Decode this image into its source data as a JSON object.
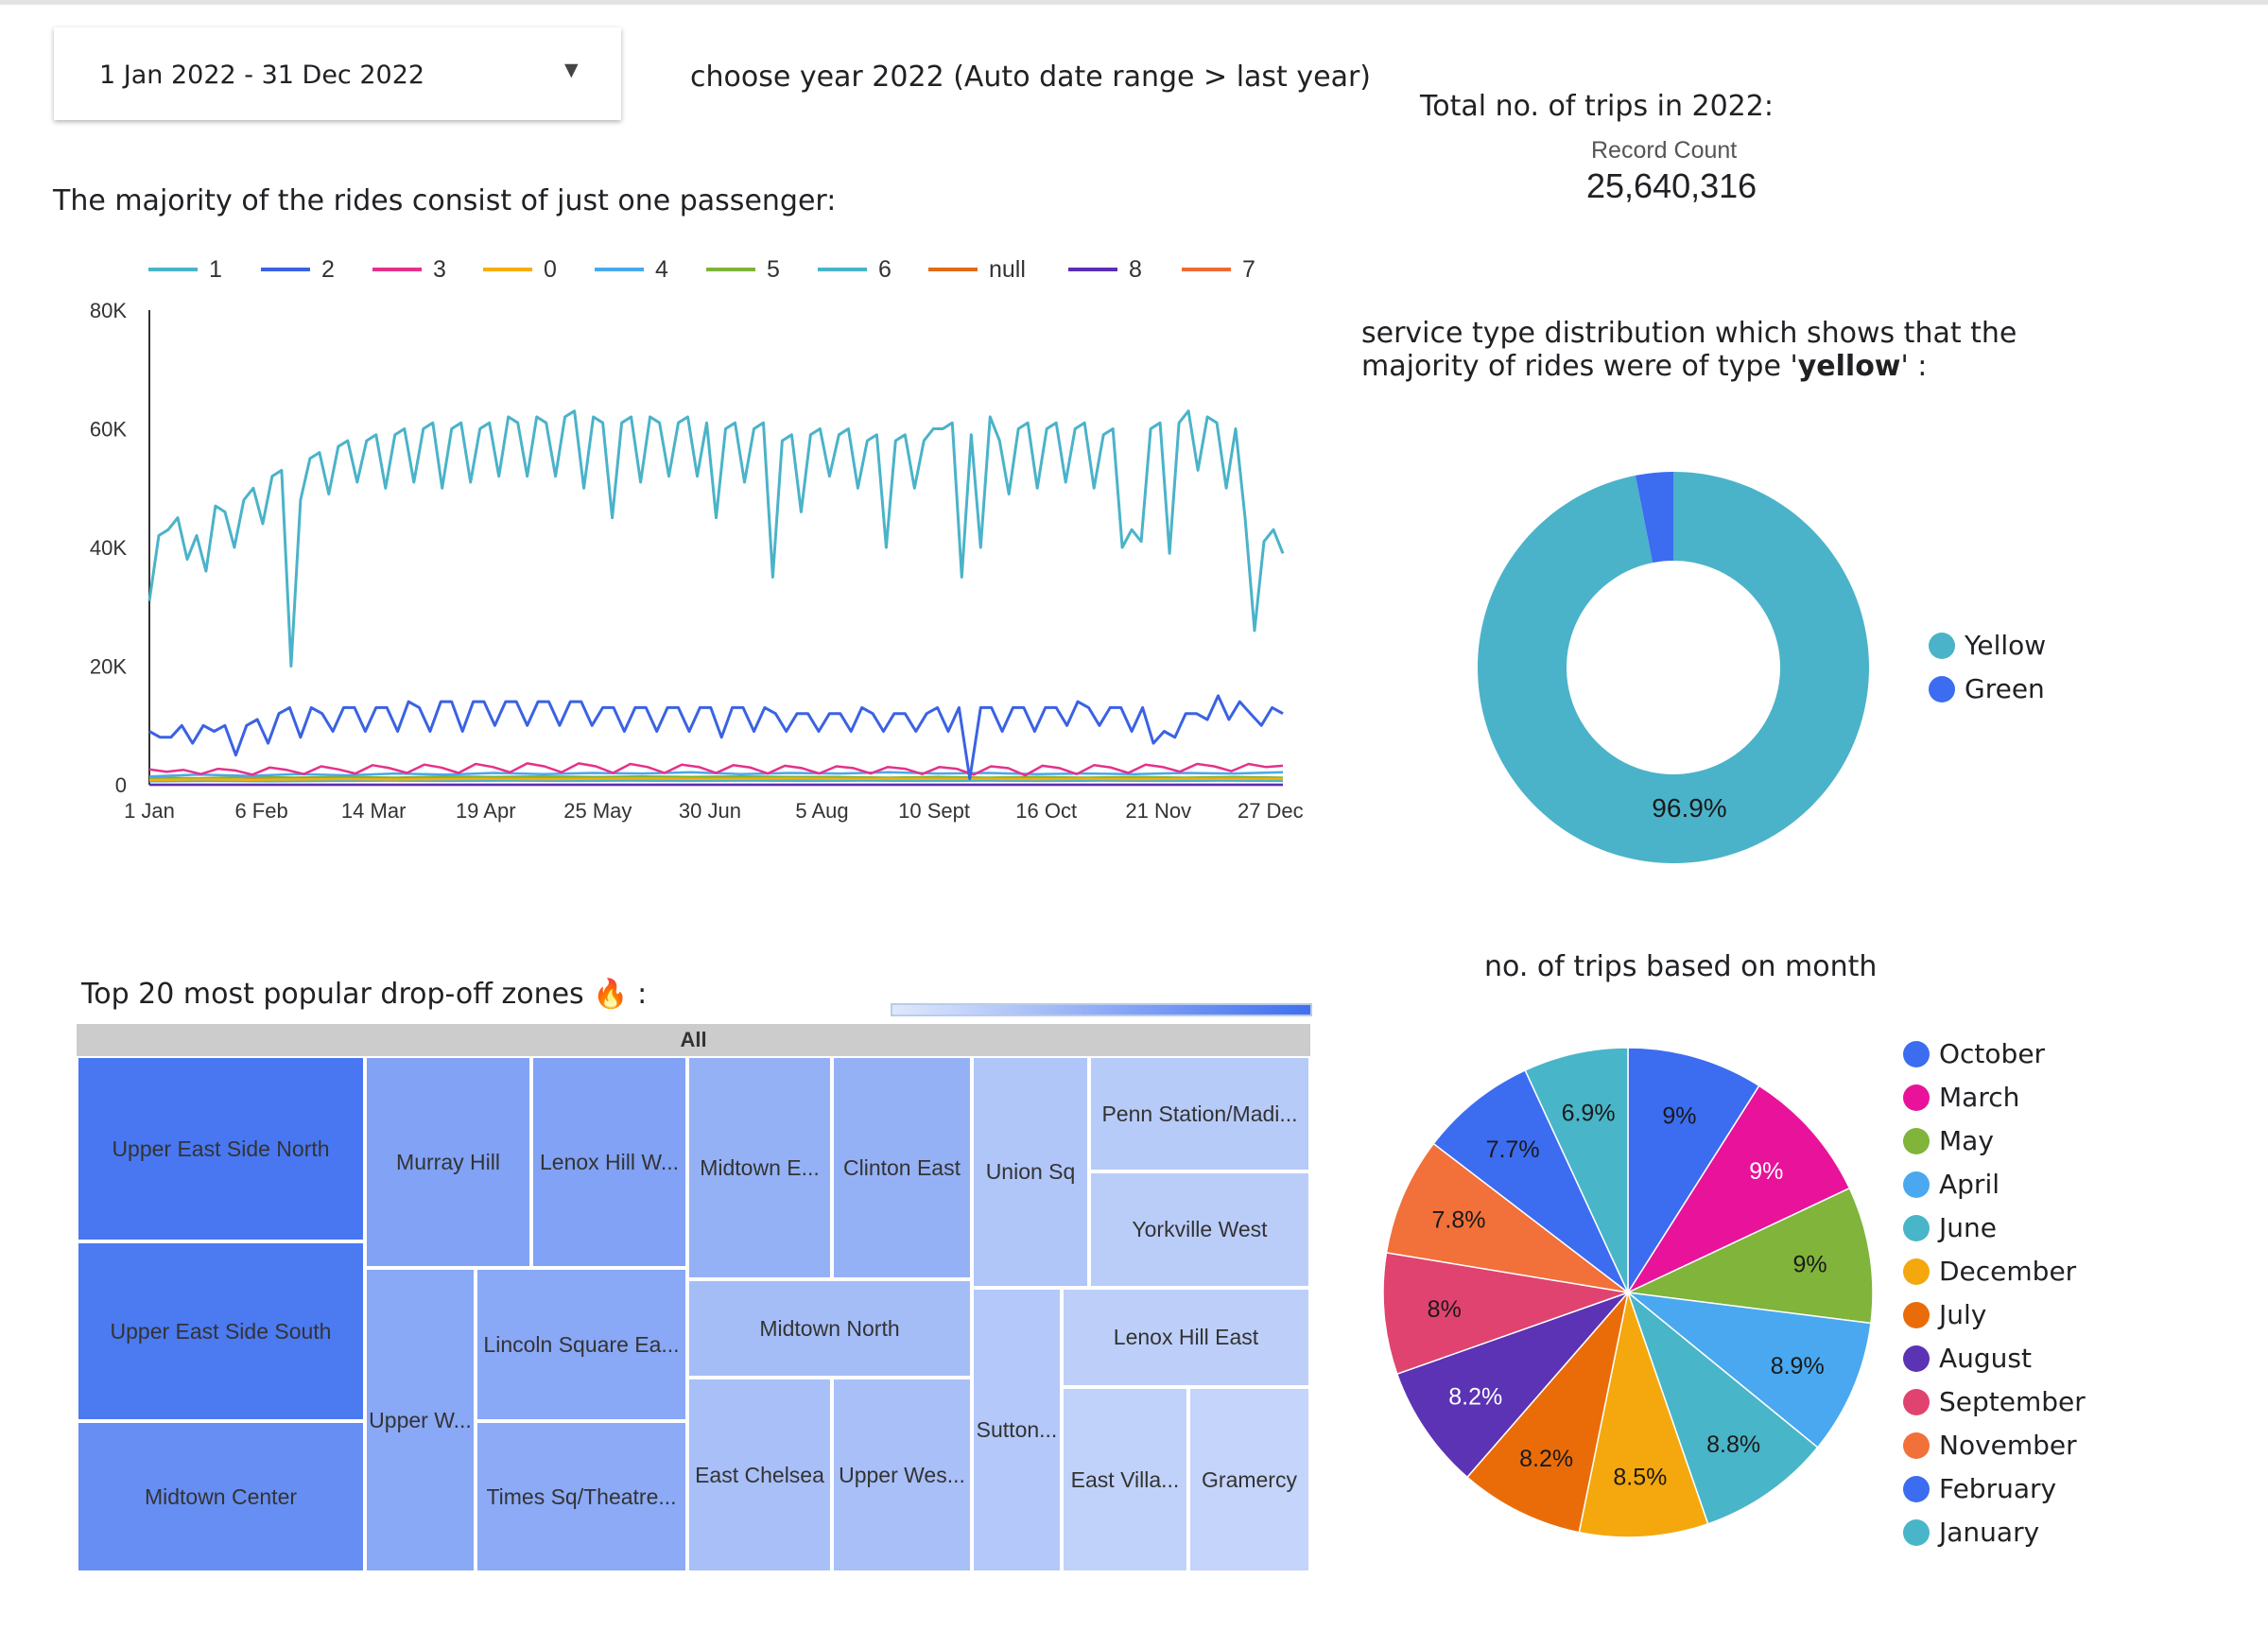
{
  "date_filter": {
    "label": "1 Jan 2022 - 31 Dec 2022",
    "caret": "▼",
    "note": "choose year 2022 (Auto date range > last year)"
  },
  "scorecard": {
    "heading": "Total no. of trips in 2022:",
    "label": "Record Count",
    "value": "25,640,316"
  },
  "line_title": "The majority of the rides consist of just one passenger:",
  "donut_title_1": "service type distribution which shows that the",
  "donut_title_2_pre": "majority of rides were of type '",
  "donut_title_2_bold": "yellow",
  "donut_title_2_post": "' :",
  "treemap_title": "Top 20 most popular drop-off zones 🔥 :",
  "pie_title": "no. of trips based on month",
  "chart_data": [
    {
      "type": "line",
      "x_start": "2022-01-01",
      "xticks": [
        {
          "label": "1 Jan",
          "date": "2022-01-01"
        },
        {
          "label": "6 Feb",
          "date": "2022-02-06"
        },
        {
          "label": "14 Mar",
          "date": "2022-03-14"
        },
        {
          "label": "19 Apr",
          "date": "2022-04-19"
        },
        {
          "label": "25 May",
          "date": "2022-05-25"
        },
        {
          "label": "30 Jun",
          "date": "2022-06-30"
        },
        {
          "label": "5 Aug",
          "date": "2022-08-05"
        },
        {
          "label": "10 Sept",
          "date": "2022-09-10"
        },
        {
          "label": "16 Oct",
          "date": "2022-10-16"
        },
        {
          "label": "21 Nov",
          "date": "2022-11-21"
        },
        {
          "label": "27 Dec",
          "date": "2022-12-27"
        }
      ],
      "yticks": [
        {
          "label": "0",
          "value": 0
        },
        {
          "label": "20K",
          "value": 20000
        },
        {
          "label": "40K",
          "value": 40000
        },
        {
          "label": "60K",
          "value": 60000
        },
        {
          "label": "80K",
          "value": 80000
        }
      ],
      "ylim": [
        0,
        80000
      ],
      "legend": [
        "1",
        "2",
        "3",
        "0",
        "4",
        "5",
        "6",
        "null",
        "8",
        "7"
      ],
      "series": [
        {
          "name": "1",
          "color": "#4ab3c9",
          "values": [
            31000,
            42000,
            43000,
            45000,
            38000,
            42000,
            36000,
            47000,
            46000,
            40000,
            48000,
            50000,
            44000,
            52000,
            53000,
            20000,
            48000,
            55000,
            56000,
            49000,
            57000,
            58000,
            51000,
            58000,
            59000,
            50000,
            59000,
            60000,
            51000,
            60000,
            61000,
            50000,
            60000,
            61000,
            51000,
            60000,
            61000,
            52000,
            62000,
            61000,
            52000,
            62000,
            61000,
            52000,
            62000,
            63000,
            50000,
            62000,
            61000,
            45000,
            61000,
            62000,
            51000,
            62000,
            61000,
            52000,
            61000,
            62000,
            52000,
            61000,
            45000,
            60000,
            61000,
            51000,
            60000,
            61000,
            35000,
            58000,
            59000,
            46000,
            59000,
            60000,
            52000,
            59000,
            60000,
            50000,
            58000,
            59000,
            40000,
            58000,
            59000,
            50000,
            58000,
            60000,
            60000,
            61000,
            35000,
            59000,
            40000,
            62000,
            58000,
            49000,
            60000,
            61000,
            50000,
            60000,
            61000,
            51000,
            60000,
            61000,
            50000,
            59000,
            60000,
            40000,
            43000,
            41000,
            60000,
            61000,
            39000,
            61000,
            63000,
            53000,
            62000,
            61000,
            50000,
            60000,
            45000,
            26000,
            41000,
            43000,
            39000
          ]
        },
        {
          "name": "2",
          "color": "#3a62e3",
          "values": [
            9000,
            8000,
            8000,
            10000,
            7000,
            10000,
            9000,
            10000,
            5000,
            10000,
            11000,
            7000,
            12000,
            13000,
            8000,
            13000,
            12000,
            9000,
            13000,
            13000,
            9000,
            13000,
            13000,
            9000,
            14000,
            13000,
            9000,
            14000,
            14000,
            9000,
            14000,
            14000,
            10000,
            14000,
            14000,
            10000,
            14000,
            14000,
            10000,
            14000,
            14000,
            10000,
            13000,
            13000,
            9000,
            13000,
            13000,
            9000,
            13000,
            13000,
            9000,
            13000,
            13000,
            8000,
            13000,
            13000,
            9000,
            13000,
            12000,
            9000,
            12000,
            12000,
            9000,
            12000,
            12000,
            9000,
            13000,
            12000,
            9000,
            12000,
            12000,
            9000,
            12000,
            13000,
            9000,
            13000,
            1000,
            13000,
            13000,
            9000,
            13000,
            13000,
            9000,
            13000,
            13000,
            10000,
            14000,
            13000,
            10000,
            13000,
            13000,
            9000,
            13000,
            7000,
            9000,
            8000,
            12000,
            12000,
            11000,
            15000,
            11000,
            14000,
            12000,
            10000,
            13000,
            12000
          ]
        },
        {
          "name": "3",
          "color": "#e5318a",
          "values": [
            2600,
            2200,
            2500,
            1800,
            2700,
            2400,
            1700,
            2900,
            2500,
            1800,
            3100,
            2600,
            1900,
            3300,
            2800,
            2000,
            3400,
            2900,
            2000,
            3500,
            3000,
            2100,
            3600,
            3100,
            2100,
            3600,
            3100,
            2000,
            3500,
            3000,
            2000,
            3400,
            3000,
            2000,
            3300,
            2900,
            1900,
            3200,
            2800,
            1900,
            3100,
            2800,
            1900,
            3000,
            2700,
            1800,
            3000,
            2700,
            1700,
            3100,
            2800,
            1600,
            3200,
            2800,
            1800,
            3300,
            2900,
            2000,
            3400,
            3000,
            2200,
            3500,
            3100,
            2300,
            3500,
            3000,
            3200
          ]
        },
        {
          "name": "0",
          "color": "#f5ae0e",
          "values": [
            800,
            900,
            850,
            900,
            950,
            900,
            950,
            1000,
            950,
            1000,
            1050,
            1000,
            1000,
            1050,
            1000,
            1000,
            1000,
            1000,
            950,
            1000,
            950,
            1000,
            1000,
            1000
          ]
        },
        {
          "name": "4",
          "color": "#4aa8ea",
          "values": [
            1400,
            1700,
            1500,
            1800,
            1600,
            1900,
            1700,
            2000,
            1800,
            2000,
            1900,
            2100,
            1800,
            2000,
            1900,
            2100,
            1900,
            2000,
            1800,
            1900,
            1800,
            2000,
            1900,
            2100
          ]
        },
        {
          "name": "5",
          "color": "#7fb23b",
          "values": [
            1200,
            1100,
            1300,
            1200,
            1300,
            1200,
            1400,
            1300,
            1400,
            1300,
            1400,
            1300,
            1400,
            1300,
            1300,
            1200,
            1300,
            1200,
            1300,
            1200,
            1300,
            1200,
            1300,
            1200
          ]
        },
        {
          "name": "6",
          "color": "#4ab3c9",
          "values": [
            600,
            650,
            600,
            650,
            700,
            650,
            700,
            650,
            700,
            650,
            700,
            650,
            700,
            650,
            700,
            650,
            700,
            650,
            700,
            650
          ]
        },
        {
          "name": "null",
          "color": "#e06b1a",
          "values": [
            1000,
            800,
            1200,
            900,
            1300,
            1000,
            1200,
            900,
            1100,
            800,
            1000,
            900,
            1100,
            1000,
            1200,
            1000
          ]
        },
        {
          "name": "8",
          "color": "#5b2fb4",
          "values": [
            5,
            5,
            5,
            5,
            5,
            5,
            5,
            5
          ]
        },
        {
          "name": "7",
          "color": "#ee6a33",
          "values": [
            5,
            5,
            5,
            5,
            5,
            5,
            5,
            5
          ]
        }
      ]
    },
    {
      "type": "pie",
      "subtype": "donut",
      "slices": [
        {
          "label": "Yellow",
          "value": 96.9,
          "color": "#4ab3c9",
          "text": "96.9%"
        },
        {
          "label": "Green",
          "value": 3.1,
          "color": "#3c6cf0",
          "text": ""
        }
      ]
    },
    {
      "type": "heatmap",
      "subtype": "treemap",
      "root_label": "All",
      "cells": [
        {
          "label": "Upper East Side North",
          "shade": 0.92
        },
        {
          "label": "Upper East Side South",
          "shade": 0.9
        },
        {
          "label": "Midtown Center",
          "shade": 0.72
        },
        {
          "label": "Murray Hill",
          "shade": 0.55
        },
        {
          "label": "Lenox Hill W...",
          "shade": 0.55
        },
        {
          "label": "Upper W...",
          "shade": 0.5
        },
        {
          "label": "Lincoln Square Ea...",
          "shade": 0.5
        },
        {
          "label": "Times Sq/Theatre...",
          "shade": 0.48
        },
        {
          "label": "Midtown E...",
          "shade": 0.42
        },
        {
          "label": "Clinton East",
          "shade": 0.42
        },
        {
          "label": "Midtown North",
          "shade": 0.32
        },
        {
          "label": "East Chelsea",
          "shade": 0.3
        },
        {
          "label": "Upper Wes...",
          "shade": 0.3
        },
        {
          "label": "Union Sq",
          "shade": 0.25
        },
        {
          "label": "Sutton...",
          "shade": 0.22
        },
        {
          "label": "Penn Station/Madi...",
          "shade": 0.2
        },
        {
          "label": "Yorkville West",
          "shade": 0.18
        },
        {
          "label": "Lenox Hill East",
          "shade": 0.16
        },
        {
          "label": "East Villa...",
          "shade": 0.14
        },
        {
          "label": "Gramercy",
          "shade": 0.12
        }
      ]
    },
    {
      "type": "pie",
      "slices": [
        {
          "label": "October",
          "value": 9.0,
          "color": "#3c6cf0",
          "text": "9%",
          "text_color": "#1a1a1a"
        },
        {
          "label": "March",
          "value": 9.0,
          "color": "#e8139a",
          "text": "9%",
          "text_color": "#ffffff"
        },
        {
          "label": "May",
          "value": 9.0,
          "color": "#80b43a",
          "text": "9%",
          "text_color": "#1a1a1a"
        },
        {
          "label": "April",
          "value": 8.9,
          "color": "#49a8ef",
          "text": "8.9%",
          "text_color": "#1a1a1a"
        },
        {
          "label": "June",
          "value": 8.8,
          "color": "#49b5c8",
          "text": "8.8%",
          "text_color": "#1a1a1a"
        },
        {
          "label": "December",
          "value": 8.5,
          "color": "#f5a80d",
          "text": "8.5%",
          "text_color": "#1a1a1a"
        },
        {
          "label": "July",
          "value": 8.2,
          "color": "#ea6c09",
          "text": "8.2%",
          "text_color": "#1a1a1a"
        },
        {
          "label": "August",
          "value": 8.2,
          "color": "#5b33b4",
          "text": "8.2%",
          "text_color": "#ffffff"
        },
        {
          "label": "September",
          "value": 8.0,
          "color": "#e0436f",
          "text": "8%",
          "text_color": "#1a1a1a"
        },
        {
          "label": "November",
          "value": 7.8,
          "color": "#f27039",
          "text": "7.8%",
          "text_color": "#1a1a1a"
        },
        {
          "label": "February",
          "value": 7.7,
          "color": "#3c6cf0",
          "text": "7.7%",
          "text_color": "#1a1a1a"
        },
        {
          "label": "January",
          "value": 6.9,
          "color": "#49b5c8",
          "text": "6.9%",
          "text_color": "#1a1a1a"
        }
      ]
    }
  ]
}
